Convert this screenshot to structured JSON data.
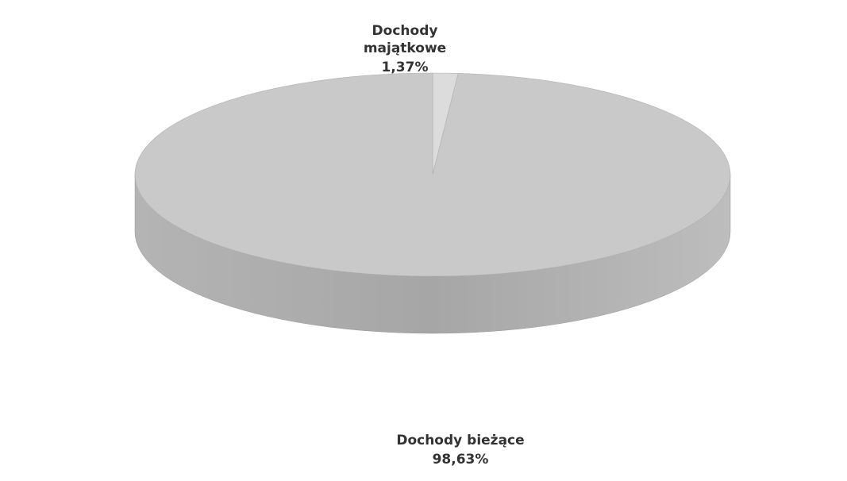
{
  "chart_data": {
    "type": "pie",
    "categories": [
      "Dochody majątkowe",
      "Dochody bieżące"
    ],
    "values": [
      1.37,
      98.63
    ],
    "value_labels": [
      "1,37%",
      "98,63%"
    ],
    "colors": [
      "#dcdcdc",
      "#c9c9c9"
    ]
  }
}
